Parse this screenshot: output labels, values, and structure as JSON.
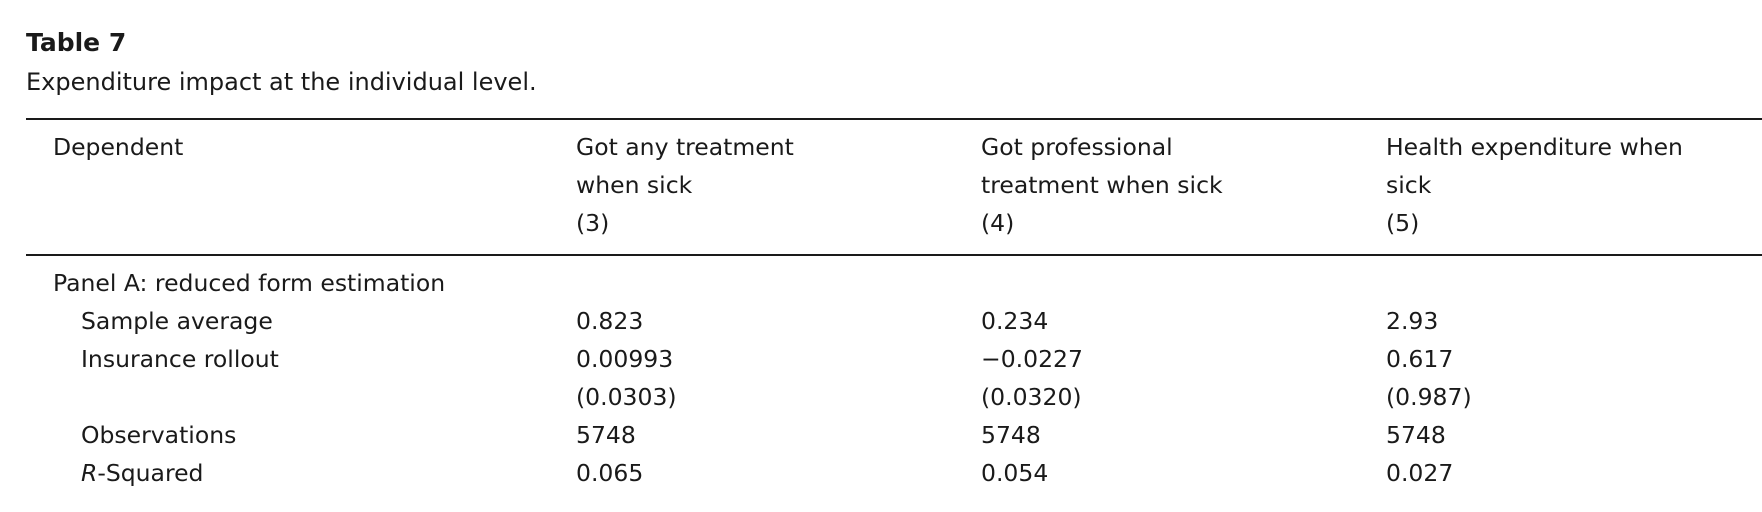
{
  "table": {
    "title": "Table 7",
    "caption": "Expenditure impact at the individual level.",
    "header": {
      "dependent_label": "Dependent",
      "columns": [
        {
          "line1": "Got any treatment",
          "line2": "when sick",
          "number": "(3)"
        },
        {
          "line1": "Got professional",
          "line2": "treatment when sick",
          "number": "(4)"
        },
        {
          "line1": "Health expenditure when",
          "line2": "sick",
          "number": "(5)"
        }
      ]
    },
    "panel_a": {
      "label": "Panel A: reduced form estimation",
      "rows": [
        {
          "label": "Sample average",
          "values": [
            "0.823",
            "0.234",
            "2.93"
          ]
        },
        {
          "label": "Insurance rollout",
          "values": [
            "0.00993",
            "−0.0227",
            "0.617"
          ]
        },
        {
          "label": "",
          "values": [
            "(0.0303)",
            "(0.0320)",
            "(0.987)"
          ]
        },
        {
          "label": "Observations",
          "values": [
            "5748",
            "5748",
            "5748"
          ]
        },
        {
          "label_italic": "R",
          "label_rest": "-Squared",
          "values": [
            "0.065",
            "0.054",
            "0.027"
          ]
        }
      ]
    }
  }
}
